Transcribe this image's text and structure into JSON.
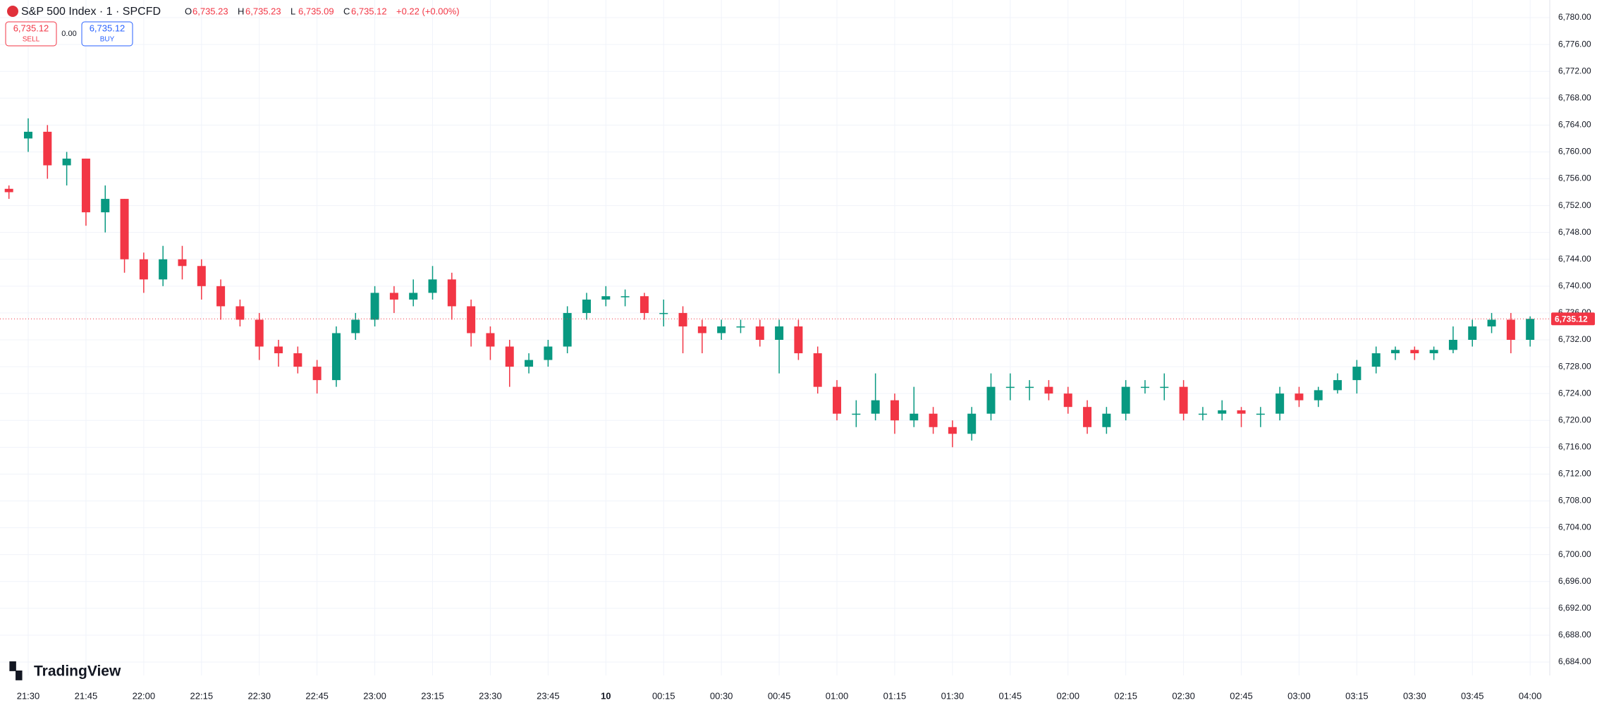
{
  "chart_data": {
    "type": "candlestick",
    "title": "S&P 500 Index · 1 · SPCFD",
    "ohlc_legend": [
      {
        "label": "O",
        "value": "6,735.23"
      },
      {
        "label": "H",
        "value": "6,735.23"
      },
      {
        "label": "L",
        "value": "6,735.09"
      },
      {
        "label": "C",
        "value": "6,735.12"
      }
    ],
    "change": "+0.22 (+0.00%)",
    "sell": {
      "price": "6,735.12",
      "label": "SELL"
    },
    "spread": "0.00",
    "buy": {
      "price": "6,735.12",
      "label": "BUY"
    },
    "brand": "TradingView",
    "up_color": "#089981",
    "down_color": "#f23645",
    "current_price": {
      "value": 6735.12,
      "label": "6,735.12"
    },
    "grid": true,
    "ylim": [
      6682,
      6782
    ],
    "yticks": [
      {
        "value": 6684,
        "label": "6,684.00"
      },
      {
        "value": 6688,
        "label": "6,688.00"
      },
      {
        "value": 6692,
        "label": "6,692.00"
      },
      {
        "value": 6696,
        "label": "6,696.00"
      },
      {
        "value": 6700,
        "label": "6,700.00"
      },
      {
        "value": 6704,
        "label": "6,704.00"
      },
      {
        "value": 6708,
        "label": "6,708.00"
      },
      {
        "value": 6712,
        "label": "6,712.00"
      },
      {
        "value": 6716,
        "label": "6,716.00"
      },
      {
        "value": 6720,
        "label": "6,720.00"
      },
      {
        "value": 6724,
        "label": "6,724.00"
      },
      {
        "value": 6728,
        "label": "6,728.00"
      },
      {
        "value": 6732,
        "label": "6,732.00"
      },
      {
        "value": 6736,
        "label": "6,736.00"
      },
      {
        "value": 6740,
        "label": "6,740.00"
      },
      {
        "value": 6744,
        "label": "6,744.00"
      },
      {
        "value": 6748,
        "label": "6,748.00"
      },
      {
        "value": 6752,
        "label": "6,752.00"
      },
      {
        "value": 6756,
        "label": "6,756.00"
      },
      {
        "value": 6760,
        "label": "6,760.00"
      },
      {
        "value": 6764,
        "label": "6,764.00"
      },
      {
        "value": 6768,
        "label": "6,768.00"
      },
      {
        "value": 6772,
        "label": "6,772.00"
      },
      {
        "value": 6776,
        "label": "6,776.00"
      },
      {
        "value": 6780,
        "label": "6,780.00"
      }
    ],
    "xticks": [
      "21:30",
      "21:45",
      "22:00",
      "22:15",
      "22:30",
      "22:45",
      "23:00",
      "23:15",
      "23:30",
      "23:45",
      {
        "value": "00:00",
        "label": "10"
      },
      "00:15",
      "00:30",
      "00:45",
      "01:00",
      "01:15",
      "01:30",
      "01:45",
      "02:00",
      "02:15",
      "02:30",
      "02:45",
      "03:00",
      "03:15",
      "03:30",
      "03:45",
      "04:00"
    ],
    "x": [
      "21:25",
      "21:30",
      "21:35",
      "21:40",
      "21:45",
      "21:50",
      "21:55",
      "22:00",
      "22:05",
      "22:10",
      "22:15",
      "22:20",
      "22:25",
      "22:30",
      "22:35",
      "22:40",
      "22:45",
      "22:50",
      "22:55",
      "23:00",
      "23:05",
      "23:10",
      "23:15",
      "23:20",
      "23:25",
      "23:30",
      "23:35",
      "23:40",
      "23:45",
      "23:50",
      "23:55",
      "00:00",
      "00:05",
      "00:10",
      "00:15",
      "00:20",
      "00:25",
      "00:30",
      "00:35",
      "00:40",
      "00:45",
      "00:50",
      "00:55",
      "01:00",
      "01:05",
      "01:10",
      "01:15",
      "01:20",
      "01:25",
      "01:30",
      "01:35",
      "01:40",
      "01:45",
      "01:50",
      "01:55",
      "02:00",
      "02:05",
      "02:10",
      "02:15",
      "02:20",
      "02:25",
      "02:30",
      "02:35",
      "02:40",
      "02:45",
      "02:50",
      "02:55",
      "03:00",
      "03:05",
      "03:10",
      "03:15",
      "03:20",
      "03:25",
      "03:30",
      "03:35",
      "03:40",
      "03:45",
      "03:50",
      "03:55",
      "04:00"
    ],
    "open": [
      6754.5,
      6762,
      6763,
      6758,
      6759,
      6751,
      6753,
      6744,
      6741,
      6744,
      6743,
      6740,
      6737,
      6735,
      6731,
      6730,
      6728,
      6726,
      6733,
      6735,
      6739,
      6738,
      6739,
      6741,
      6737,
      6733,
      6731,
      6728,
      6729,
      6731,
      6736,
      6738,
      6738.5,
      6738.5,
      6736,
      6736,
      6734,
      6733,
      6734,
      6734,
      6732,
      6734,
      6730,
      6725,
      6721,
      6721,
      6723,
      6720,
      6721,
      6719,
      6718,
      6721,
      6725,
      6725,
      6725,
      6724,
      6722,
      6719,
      6721,
      6725,
      6725,
      6725,
      6721,
      6721,
      6721.5,
      6721,
      6721,
      6724,
      6723,
      6724.5,
      6726,
      6728,
      6730,
      6730.5,
      6730,
      6730.5,
      6732,
      6734,
      6735,
      6732
    ],
    "high": [
      6755,
      6765,
      6764,
      6760,
      6759,
      6755,
      6753,
      6745,
      6746,
      6746,
      6744,
      6741,
      6738,
      6736,
      6732,
      6731,
      6729,
      6734,
      6736,
      6740,
      6740,
      6741,
      6743,
      6742,
      6738,
      6734,
      6732,
      6730,
      6732,
      6737,
      6739,
      6740,
      6739.5,
      6739,
      6738,
      6737,
      6735,
      6735,
      6735,
      6735,
      6735,
      6735,
      6731,
      6726,
      6723,
      6727,
      6724,
      6725,
      6722,
      6720,
      6722,
      6727,
      6727,
      6726,
      6726,
      6725,
      6723,
      6722,
      6726,
      6726,
      6727,
      6726,
      6722,
      6723,
      6722,
      6722,
      6725,
      6725,
      6725,
      6727,
      6729,
      6731,
      6731,
      6731,
      6731,
      6734,
      6735,
      6736,
      6736,
      6735.5
    ],
    "low": [
      6753,
      6760,
      6756,
      6755,
      6749,
      6748,
      6742,
      6739,
      6740,
      6741,
      6738,
      6735,
      6734,
      6729,
      6728,
      6727,
      6724,
      6725,
      6732,
      6734,
      6736,
      6737,
      6738,
      6735,
      6731,
      6729,
      6725,
      6727,
      6728,
      6730,
      6735,
      6737,
      6737,
      6735,
      6734,
      6730,
      6730,
      6732,
      6733,
      6731,
      6727,
      6729,
      6724,
      6720,
      6719,
      6720,
      6718,
      6719,
      6718,
      6716,
      6717,
      6720,
      6723,
      6723,
      6723,
      6721,
      6718,
      6718,
      6720,
      6724,
      6723,
      6720,
      6720,
      6720,
      6719,
      6719,
      6720,
      6722,
      6722,
      6724,
      6724,
      6727,
      6729,
      6729,
      6729,
      6730,
      6731,
      6733,
      6730,
      6731
    ],
    "close": [
      6754,
      6763,
      6758,
      6759,
      6751,
      6753,
      6744,
      6741,
      6744,
      6743,
      6740,
      6737,
      6735,
      6731,
      6730,
      6728,
      6726,
      6733,
      6735,
      6739,
      6738,
      6739,
      6741,
      6737,
      6733,
      6731,
      6728,
      6729,
      6731,
      6736,
      6738,
      6738.5,
      6738.5,
      6736,
      6736,
      6734,
      6733,
      6734,
      6734,
      6732,
      6734,
      6730,
      6725,
      6721,
      6721,
      6723,
      6720,
      6721,
      6719,
      6718,
      6721,
      6725,
      6725,
      6725,
      6724,
      6722,
      6719,
      6721,
      6725,
      6725,
      6725,
      6721,
      6721,
      6721.5,
      6721,
      6721,
      6724,
      6723,
      6724.5,
      6726,
      6728,
      6730,
      6730.5,
      6730,
      6730.5,
      6732,
      6734,
      6735,
      6732,
      6735.12
    ]
  }
}
